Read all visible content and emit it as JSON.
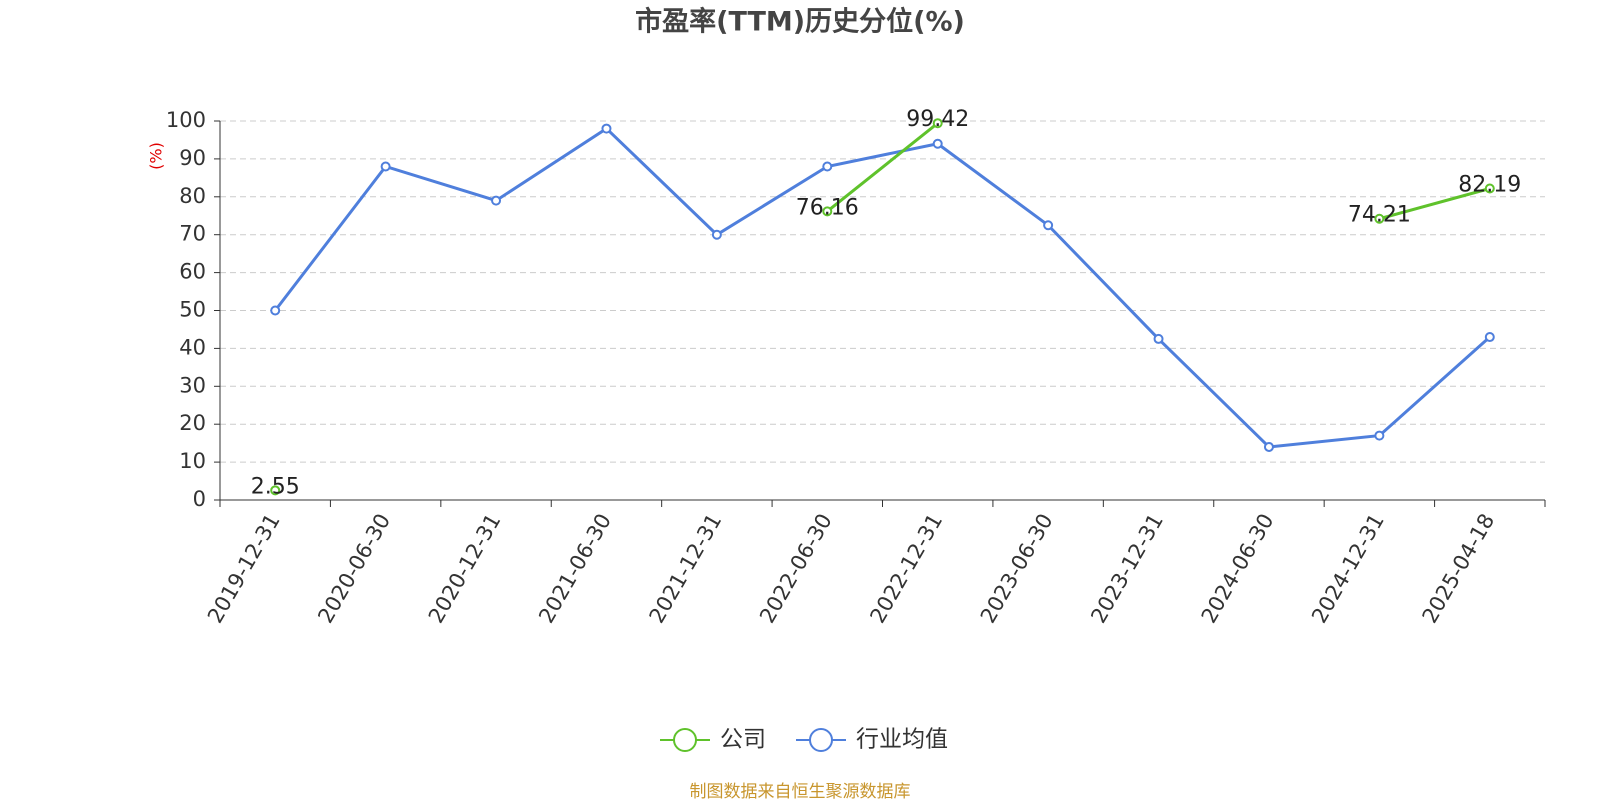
{
  "chart_data": {
    "type": "line",
    "title": "市盈率(TTM)历史分位(%)",
    "y_label": "(%)",
    "categories": [
      "2019-12-31",
      "2020-06-30",
      "2020-12-31",
      "2021-06-30",
      "2021-12-31",
      "2022-06-30",
      "2022-12-31",
      "2023-06-30",
      "2023-12-31",
      "2024-06-30",
      "2024-12-31",
      "2025-04-18"
    ],
    "series": [
      {
        "name": "公司",
        "color": "#5fc22b",
        "values": [
          2.55,
          null,
          null,
          null,
          null,
          76.16,
          99.42,
          null,
          null,
          null,
          74.21,
          82.19
        ]
      },
      {
        "name": "行业均值",
        "color": "#4f7fdc",
        "values": [
          50,
          88,
          79,
          98,
          70,
          88,
          94,
          72.5,
          42.5,
          14,
          17,
          43
        ]
      }
    ],
    "ylim": [
      0,
      100
    ],
    "yticks": [
      0,
      10,
      20,
      30,
      40,
      50,
      60,
      70,
      80,
      90,
      100
    ],
    "grid": true,
    "legend": "bottom",
    "source": "制图数据来自恒生聚源数据库"
  }
}
